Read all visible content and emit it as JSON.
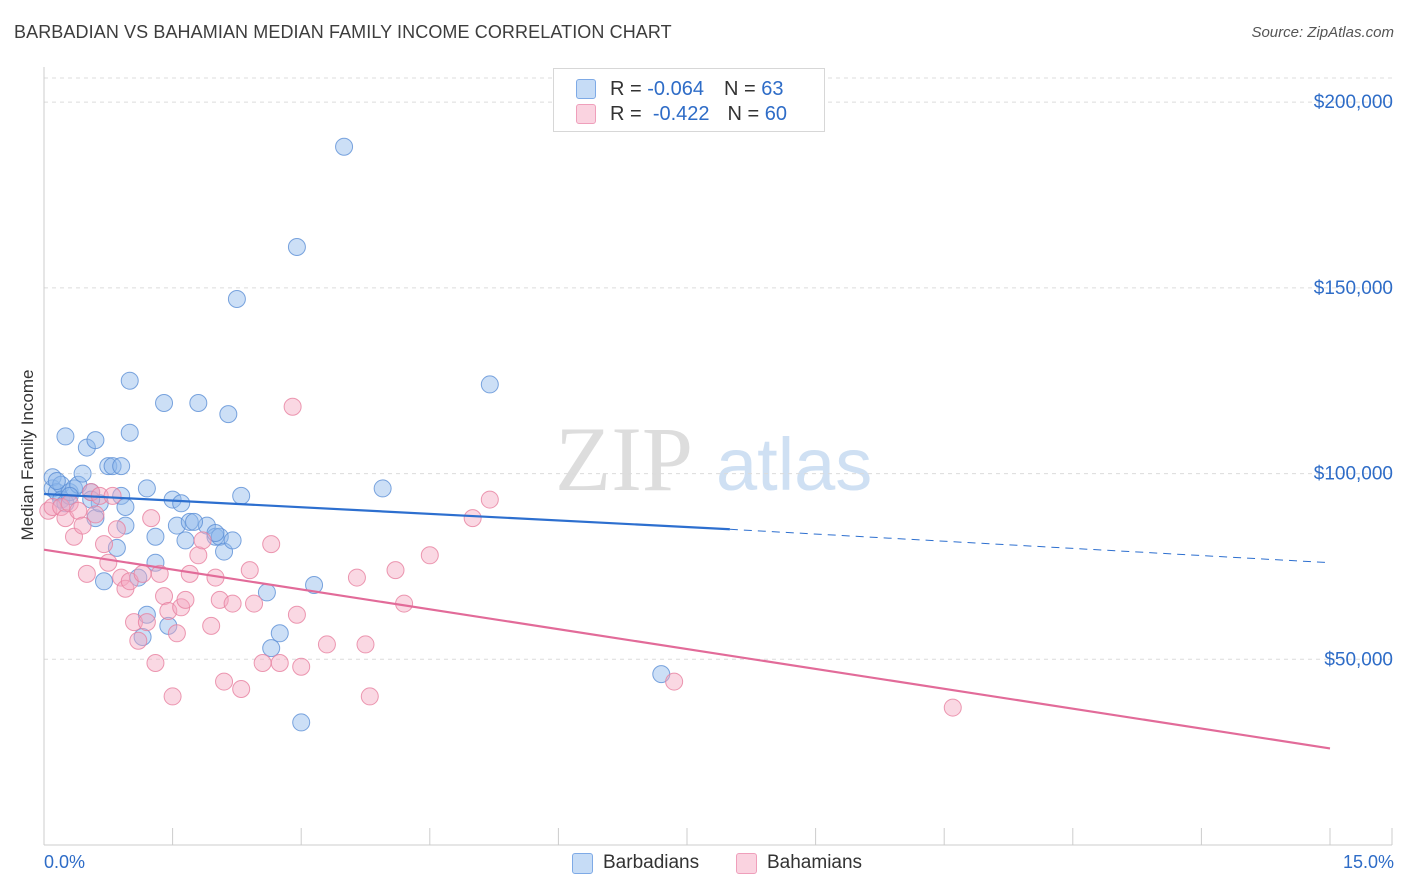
{
  "title": "BARBADIAN VS BAHAMIAN MEDIAN FAMILY INCOME CORRELATION CHART",
  "source": "Source: ZipAtlas.com",
  "watermark": {
    "zip": "ZIP",
    "atlas": "atlas"
  },
  "legend": {
    "rows": [
      {
        "r_label": "R =",
        "r_value": "-0.064",
        "n_label": "N =",
        "n_value": "63",
        "color": "#8fb8ec"
      },
      {
        "r_label": "R =",
        "r_value": "-0.422",
        "n_label": "N =",
        "n_value": "60",
        "color": "#f3a8c0"
      }
    ]
  },
  "bottom_legend": [
    "Barbadians",
    "Bahamians"
  ],
  "x_axis": {
    "min_label": "0.0%",
    "max_label": "15.0%"
  },
  "chart_data": {
    "type": "scatter",
    "title": "BARBADIAN VS BAHAMIAN MEDIAN FAMILY INCOME CORRELATION CHART",
    "xlabel": "",
    "ylabel": "Median Family Income",
    "xlim": [
      0,
      15
    ],
    "ylim": [
      0,
      210000
    ],
    "y_ticks": [
      50000,
      100000,
      150000,
      200000
    ],
    "y_tick_labels": [
      "$50,000",
      "$100,000",
      "$150,000",
      "$200,000"
    ],
    "x_tick_labels": [
      "0.0%",
      "15.0%"
    ],
    "grid": true,
    "series": [
      {
        "name": "Barbadians",
        "color": "#8fb8ec",
        "stroke": "#5b8fd6",
        "line_color": "#2d6fcf",
        "trend": {
          "x_start": 0.0,
          "y_start": 94500,
          "x_solid_end": 8.0,
          "y_solid_end": 85000,
          "x_end": 15.0,
          "y_end": 76000
        },
        "points": [
          [
            0.1,
            96000
          ],
          [
            0.1,
            99000
          ],
          [
            0.15,
            95000
          ],
          [
            0.2,
            97000
          ],
          [
            0.2,
            93000
          ],
          [
            0.25,
            92000
          ],
          [
            0.25,
            110000
          ],
          [
            0.3,
            95000
          ],
          [
            0.35,
            96000
          ],
          [
            0.4,
            97000
          ],
          [
            0.45,
            100000
          ],
          [
            0.5,
            107000
          ],
          [
            0.55,
            95000
          ],
          [
            0.6,
            109000
          ],
          [
            0.6,
            88000
          ],
          [
            0.65,
            92000
          ],
          [
            0.7,
            71000
          ],
          [
            0.75,
            102000
          ],
          [
            0.8,
            102000
          ],
          [
            0.85,
            80000
          ],
          [
            0.9,
            102000
          ],
          [
            0.9,
            94000
          ],
          [
            0.95,
            91000
          ],
          [
            1.0,
            111000
          ],
          [
            1.0,
            125000
          ],
          [
            1.1,
            72000
          ],
          [
            1.15,
            56000
          ],
          [
            1.2,
            62000
          ],
          [
            1.2,
            96000
          ],
          [
            1.3,
            76000
          ],
          [
            1.3,
            83000
          ],
          [
            1.4,
            119000
          ],
          [
            1.45,
            59000
          ],
          [
            1.5,
            93000
          ],
          [
            1.55,
            86000
          ],
          [
            1.6,
            92000
          ],
          [
            1.65,
            82000
          ],
          [
            1.7,
            87000
          ],
          [
            1.8,
            119000
          ],
          [
            1.9,
            86000
          ],
          [
            2.0,
            83000
          ],
          [
            2.05,
            83000
          ],
          [
            2.1,
            79000
          ],
          [
            2.15,
            116000
          ],
          [
            2.2,
            82000
          ],
          [
            2.25,
            147000
          ],
          [
            2.3,
            94000
          ],
          [
            2.6,
            68000
          ],
          [
            2.65,
            53000
          ],
          [
            2.75,
            57000
          ],
          [
            2.95,
            161000
          ],
          [
            3.0,
            33000
          ],
          [
            3.15,
            70000
          ],
          [
            3.5,
            188000
          ],
          [
            3.95,
            96000
          ],
          [
            5.2,
            124000
          ],
          [
            7.2,
            46000
          ],
          [
            0.15,
            98000
          ],
          [
            0.3,
            94000
          ],
          [
            0.55,
            93000
          ],
          [
            0.95,
            86000
          ],
          [
            1.75,
            87000
          ],
          [
            2.0,
            84000
          ]
        ]
      },
      {
        "name": "Bahamians",
        "color": "#f3a8c0",
        "stroke": "#e7809f",
        "line_color": "#e26b99",
        "trend": {
          "x_start": 0.0,
          "y_start": 79500,
          "x_solid_end": 15.0,
          "y_solid_end": 26000,
          "x_end": 15.0,
          "y_end": 26000
        },
        "points": [
          [
            0.05,
            90000
          ],
          [
            0.1,
            91000
          ],
          [
            0.2,
            91000
          ],
          [
            0.25,
            88000
          ],
          [
            0.3,
            92000
          ],
          [
            0.35,
            83000
          ],
          [
            0.4,
            90000
          ],
          [
            0.45,
            86000
          ],
          [
            0.5,
            73000
          ],
          [
            0.55,
            95000
          ],
          [
            0.6,
            89000
          ],
          [
            0.65,
            94000
          ],
          [
            0.7,
            81000
          ],
          [
            0.75,
            76000
          ],
          [
            0.8,
            94000
          ],
          [
            0.85,
            85000
          ],
          [
            0.9,
            72000
          ],
          [
            0.95,
            69000
          ],
          [
            1.0,
            71000
          ],
          [
            1.05,
            60000
          ],
          [
            1.1,
            55000
          ],
          [
            1.15,
            73000
          ],
          [
            1.2,
            60000
          ],
          [
            1.25,
            88000
          ],
          [
            1.3,
            49000
          ],
          [
            1.35,
            73000
          ],
          [
            1.4,
            67000
          ],
          [
            1.45,
            63000
          ],
          [
            1.5,
            40000
          ],
          [
            1.55,
            57000
          ],
          [
            1.6,
            64000
          ],
          [
            1.65,
            66000
          ],
          [
            1.7,
            73000
          ],
          [
            1.8,
            78000
          ],
          [
            1.85,
            82000
          ],
          [
            1.95,
            59000
          ],
          [
            2.0,
            72000
          ],
          [
            2.05,
            66000
          ],
          [
            2.1,
            44000
          ],
          [
            2.2,
            65000
          ],
          [
            2.3,
            42000
          ],
          [
            2.4,
            74000
          ],
          [
            2.45,
            65000
          ],
          [
            2.55,
            49000
          ],
          [
            2.65,
            81000
          ],
          [
            2.75,
            49000
          ],
          [
            2.9,
            118000
          ],
          [
            2.95,
            62000
          ],
          [
            3.0,
            48000
          ],
          [
            3.3,
            54000
          ],
          [
            3.65,
            72000
          ],
          [
            3.75,
            54000
          ],
          [
            3.8,
            40000
          ],
          [
            4.1,
            74000
          ],
          [
            4.2,
            65000
          ],
          [
            4.5,
            78000
          ],
          [
            5.0,
            88000
          ],
          [
            5.2,
            93000
          ],
          [
            7.35,
            44000
          ],
          [
            10.6,
            37000
          ]
        ]
      }
    ]
  }
}
